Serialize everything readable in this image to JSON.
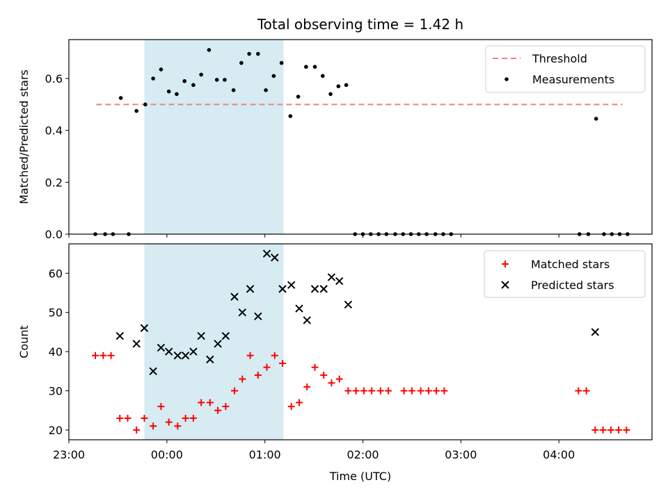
{
  "title": "Total observing time = 1.42 h",
  "chart_data": [
    {
      "type": "scatter",
      "panel": "top",
      "ylabel": "Matched/Predicted stars",
      "ylim": [
        0,
        0.75
      ],
      "yticks": [
        "0.0",
        "0.2",
        "0.4",
        "0.6"
      ],
      "xlim_hours": [
        -1.0,
        4.95
      ],
      "shaded_region_hours": [
        -0.23,
        1.19
      ],
      "threshold": {
        "name": "Threshold",
        "value": 0.5,
        "x_range_hours": [
          -0.72,
          4.65
        ],
        "color": "#f08080"
      },
      "measurements": {
        "name": "Measurements",
        "color": "#000000",
        "points": [
          [
            -0.73,
            0.0
          ],
          [
            -0.63,
            0.0
          ],
          [
            -0.55,
            0.0
          ],
          [
            -0.47,
            0.525
          ],
          [
            -0.39,
            0.0
          ],
          [
            -0.31,
            0.475
          ],
          [
            -0.22,
            0.5
          ],
          [
            -0.14,
            0.6
          ],
          [
            -0.06,
            0.635
          ],
          [
            0.02,
            0.55
          ],
          [
            0.1,
            0.54
          ],
          [
            0.18,
            0.59
          ],
          [
            0.27,
            0.575
          ],
          [
            0.35,
            0.615
          ],
          [
            0.43,
            0.71
          ],
          [
            0.51,
            0.595
          ],
          [
            0.59,
            0.595
          ],
          [
            0.68,
            0.555
          ],
          [
            0.76,
            0.66
          ],
          [
            0.84,
            0.695
          ],
          [
            0.93,
            0.695
          ],
          [
            1.01,
            0.555
          ],
          [
            1.09,
            0.61
          ],
          [
            1.17,
            0.66
          ],
          [
            1.26,
            0.455
          ],
          [
            1.34,
            0.53
          ],
          [
            1.42,
            0.645
          ],
          [
            1.51,
            0.645
          ],
          [
            1.59,
            0.61
          ],
          [
            1.67,
            0.54
          ],
          [
            1.75,
            0.57
          ],
          [
            1.83,
            0.575
          ],
          [
            1.92,
            0.0
          ],
          [
            2.0,
            0.0
          ],
          [
            2.08,
            0.0
          ],
          [
            2.16,
            0.0
          ],
          [
            2.24,
            0.0
          ],
          [
            2.33,
            0.0
          ],
          [
            2.41,
            0.0
          ],
          [
            2.49,
            0.0
          ],
          [
            2.57,
            0.0
          ],
          [
            2.65,
            0.0
          ],
          [
            2.74,
            0.0
          ],
          [
            2.82,
            0.0
          ],
          [
            2.9,
            0.0
          ],
          [
            4.21,
            0.0
          ],
          [
            4.3,
            0.0
          ],
          [
            4.38,
            0.445
          ],
          [
            4.46,
            0.0
          ],
          [
            4.54,
            0.0
          ],
          [
            4.62,
            0.0
          ],
          [
            4.7,
            0.0
          ]
        ]
      },
      "legend": "top-right"
    },
    {
      "type": "scatter",
      "panel": "bottom",
      "xlabel": "Time (UTC)",
      "ylabel": "Count",
      "ylim": [
        17.5,
        67.5
      ],
      "yticks": [
        "20",
        "30",
        "40",
        "50",
        "60"
      ],
      "xlim_hours": [
        -1.0,
        4.95
      ],
      "xticks": [
        "23:00",
        "00:00",
        "01:00",
        "02:00",
        "03:00",
        "04:00"
      ],
      "shaded_region_hours": [
        -0.23,
        1.19
      ],
      "series": [
        {
          "name": "Matched stars",
          "marker": "plus",
          "color": "#ff0000",
          "points": [
            [
              -0.73,
              39
            ],
            [
              -0.65,
              39
            ],
            [
              -0.57,
              39
            ],
            [
              -0.48,
              23
            ],
            [
              -0.4,
              23
            ],
            [
              -0.31,
              20
            ],
            [
              -0.23,
              23
            ],
            [
              -0.14,
              21
            ],
            [
              -0.06,
              26
            ],
            [
              0.02,
              22
            ],
            [
              0.11,
              21
            ],
            [
              0.19,
              23
            ],
            [
              0.27,
              23
            ],
            [
              0.35,
              27
            ],
            [
              0.44,
              27
            ],
            [
              0.52,
              25
            ],
            [
              0.6,
              26
            ],
            [
              0.69,
              30
            ],
            [
              0.77,
              33
            ],
            [
              0.85,
              39
            ],
            [
              0.93,
              34
            ],
            [
              1.02,
              36
            ],
            [
              1.1,
              39
            ],
            [
              1.18,
              37
            ],
            [
              1.27,
              26
            ],
            [
              1.35,
              27
            ],
            [
              1.43,
              31
            ],
            [
              1.51,
              36
            ],
            [
              1.6,
              34
            ],
            [
              1.68,
              32
            ],
            [
              1.76,
              33
            ],
            [
              1.85,
              30
            ],
            [
              1.93,
              30
            ],
            [
              2.01,
              30
            ],
            [
              2.09,
              30
            ],
            [
              2.18,
              30
            ],
            [
              2.26,
              30
            ],
            [
              2.42,
              30
            ],
            [
              2.5,
              30
            ],
            [
              2.59,
              30
            ],
            [
              2.67,
              30
            ],
            [
              2.75,
              30
            ],
            [
              2.83,
              30
            ],
            [
              4.2,
              30
            ],
            [
              4.28,
              30
            ],
            [
              4.37,
              20
            ],
            [
              4.45,
              20
            ],
            [
              4.53,
              20
            ],
            [
              4.61,
              20
            ],
            [
              4.69,
              20
            ]
          ]
        },
        {
          "name": "Predicted stars",
          "marker": "x",
          "color": "#000000",
          "points": [
            [
              -0.48,
              44
            ],
            [
              -0.31,
              42
            ],
            [
              -0.23,
              46
            ],
            [
              -0.14,
              35
            ],
            [
              -0.06,
              41
            ],
            [
              0.02,
              40
            ],
            [
              0.11,
              39
            ],
            [
              0.19,
              39
            ],
            [
              0.27,
              40
            ],
            [
              0.35,
              44
            ],
            [
              0.44,
              38
            ],
            [
              0.52,
              42
            ],
            [
              0.6,
              44
            ],
            [
              0.69,
              54
            ],
            [
              0.77,
              50
            ],
            [
              0.85,
              56
            ],
            [
              0.93,
              49
            ],
            [
              1.02,
              65
            ],
            [
              1.1,
              64
            ],
            [
              1.18,
              56
            ],
            [
              1.27,
              57
            ],
            [
              1.35,
              51
            ],
            [
              1.43,
              48
            ],
            [
              1.51,
              56
            ],
            [
              1.6,
              56
            ],
            [
              1.68,
              59
            ],
            [
              1.76,
              58
            ],
            [
              1.85,
              52
            ],
            [
              4.37,
              45
            ]
          ]
        }
      ],
      "legend": "top-right"
    }
  ]
}
